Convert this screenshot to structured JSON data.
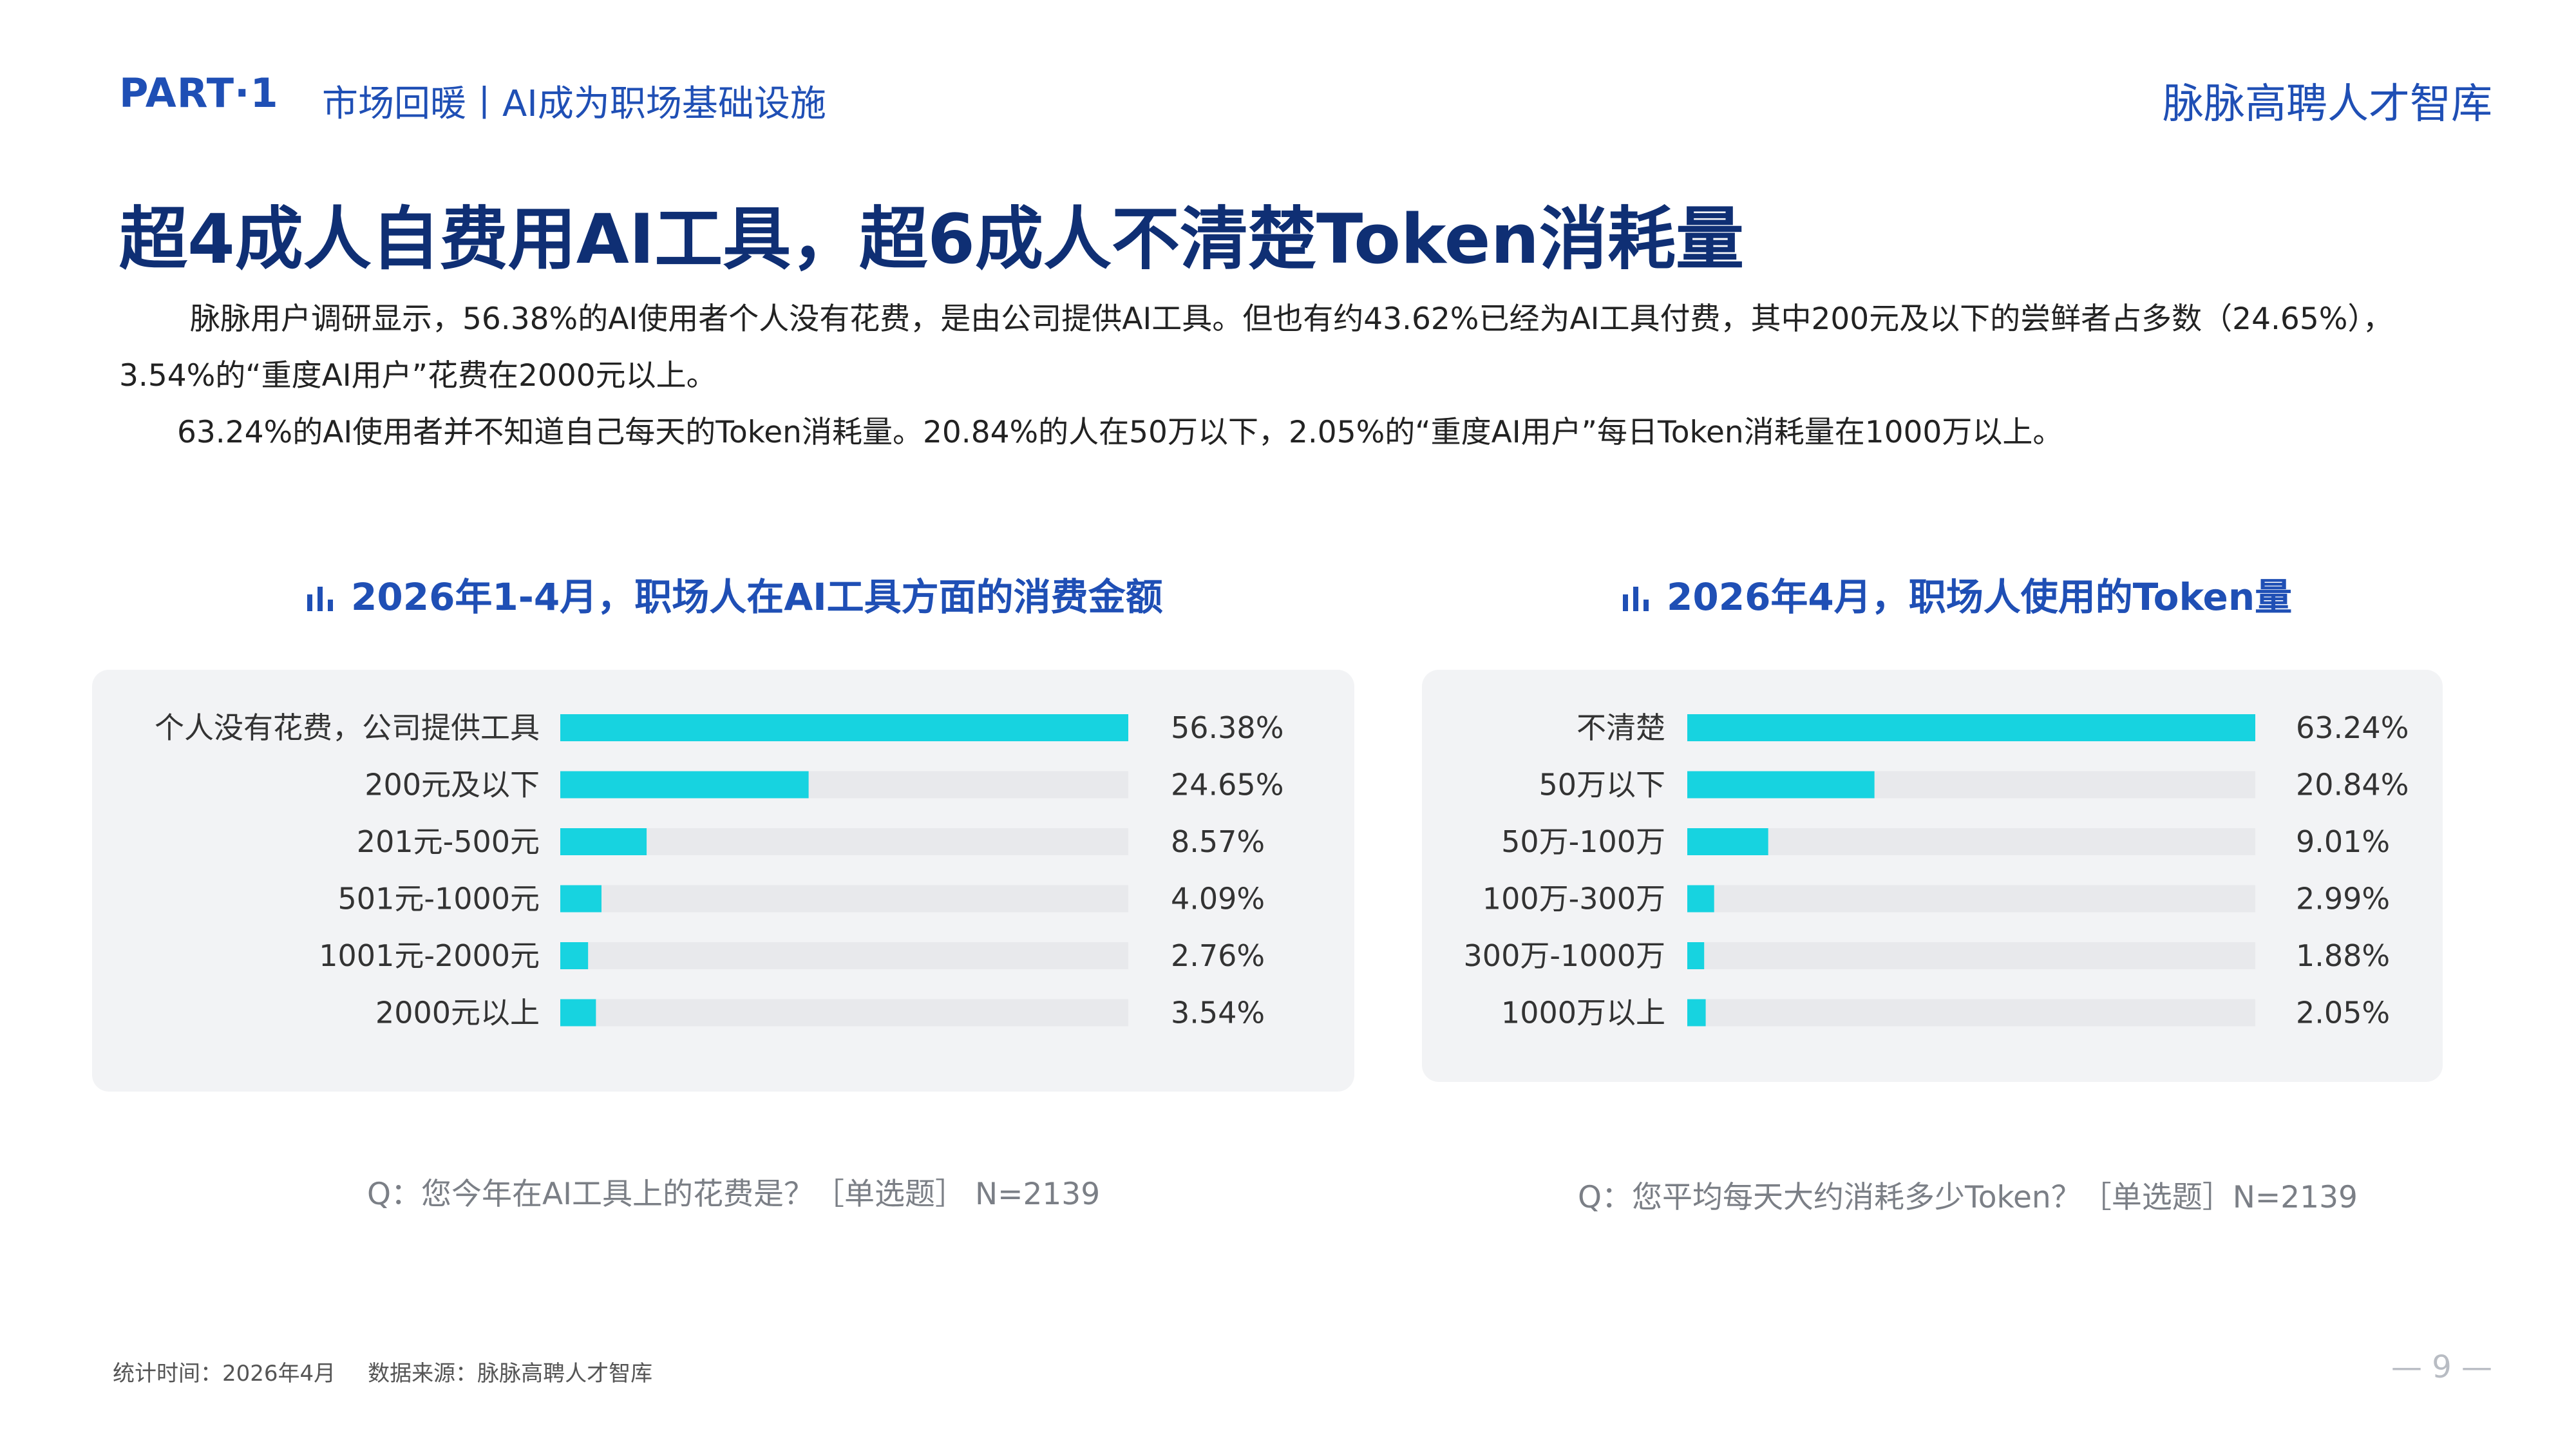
{
  "header": {
    "part_label": "PART·1",
    "section_label": "市场回暖丨AI成为职场基础设施",
    "brand": "脉脉高聘人才智库"
  },
  "main_title": "超4成人自费用AI工具，超6成人不清楚Token消耗量",
  "paragraphs": [
    "脉脉用户调研显示，56.38%的AI使用者个人没有花费，是由公司提供AI工具。但也有约43.62%已经为AI工具付费，其中200元及以下的尝鲜者占多数（24.65%），3.54%的“重度AI用户”花费在2000元以上。",
    "63.24%的AI使用者并不知道自己每天的Token消耗量。20.84%的人在50万以下，2.05%的“重度AI用户”每日Token消耗量在1000万以上。"
  ],
  "colors": {
    "accent": "#1f4fb5",
    "title": "#0f2f74",
    "bar": "#17d3e0",
    "track": "#e8e9ec",
    "panel": "#f2f3f5"
  },
  "icons": [
    "bar-chart-icon"
  ],
  "chart_data": [
    {
      "type": "bar",
      "orientation": "horizontal",
      "title": "2026年1-4月，职场人在AI工具方面的消费金额",
      "categories": [
        "个人没有花费，公司提供工具",
        "200元及以下",
        "201元-500元",
        "501元-1000元",
        "1001元-2000元",
        "2000元以上"
      ],
      "values": [
        56.38,
        24.65,
        8.57,
        4.09,
        2.76,
        3.54
      ],
      "value_labels": [
        "56.38%",
        "24.65%",
        "8.57%",
        "4.09%",
        "2.76%",
        "3.54%"
      ],
      "unit": "%",
      "xlim": [
        0,
        56.38
      ],
      "grid": false,
      "note": "Q：您今年在AI工具上的花费是？［单选题］ N=2139"
    },
    {
      "type": "bar",
      "orientation": "horizontal",
      "title": "2026年4月，职场人使用的Token量",
      "categories": [
        "不清楚",
        "50万以下",
        "50万-100万",
        "100万-300万",
        "300万-1000万",
        "1000万以上"
      ],
      "values": [
        63.24,
        20.84,
        9.01,
        2.99,
        1.88,
        2.05
      ],
      "value_labels": [
        "63.24%",
        "20.84%",
        "9.01%",
        "2.99%",
        "1.88%",
        "2.05%"
      ],
      "unit": "%",
      "xlim": [
        0,
        63.24
      ],
      "grid": false,
      "note": "Q：您平均每天大约消耗多少Token？［单选题］N=2139"
    }
  ],
  "footer": {
    "stat_time": "统计时间：2026年4月",
    "source": "数据来源：脉脉高聘人才智库",
    "page": "— 9 —"
  }
}
